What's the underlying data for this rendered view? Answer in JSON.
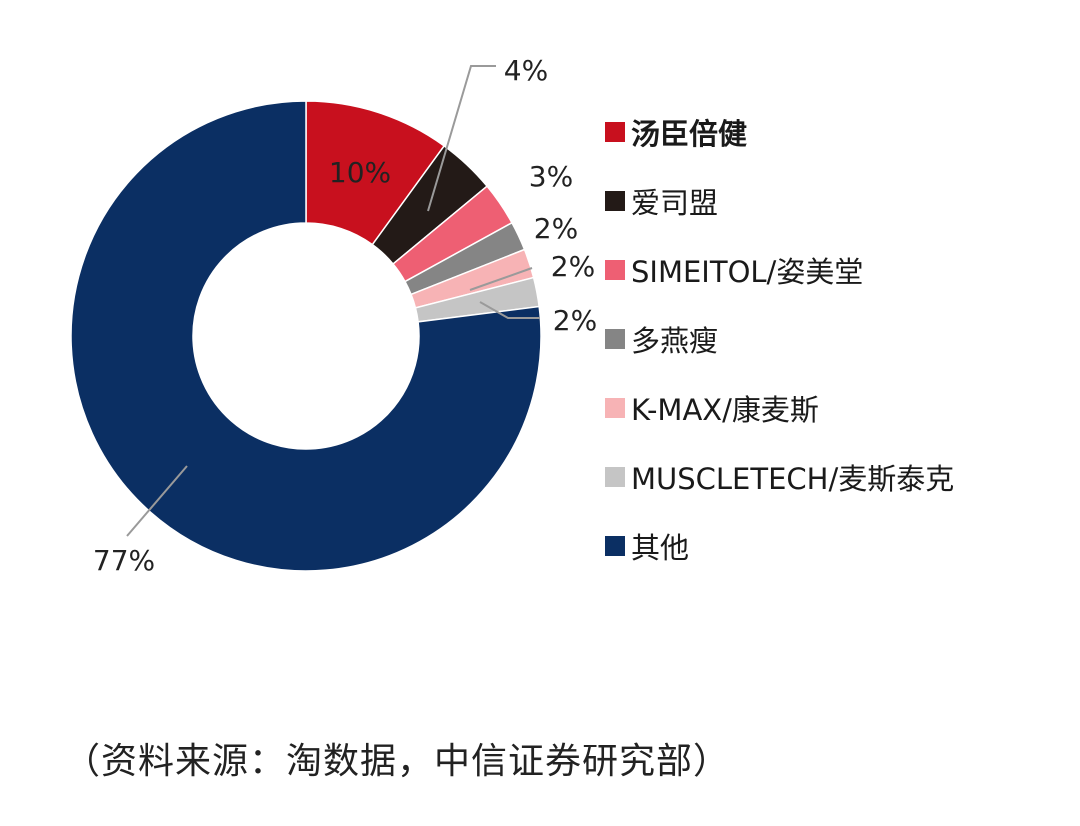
{
  "chart_data": {
    "type": "pie",
    "donut": true,
    "categories": [
      "汤臣倍健",
      "爱司盟",
      "SIMEITOL/姿美堂",
      "多燕瘦",
      "K-MAX/康麦斯",
      "MUSCLETECH/麦斯泰克",
      "其他"
    ],
    "values": [
      10,
      4,
      3,
      2,
      2,
      2,
      77
    ],
    "data_labels": [
      "10%",
      "4%",
      "3%",
      "2%",
      "2%",
      "2%",
      "77%"
    ],
    "colors": [
      "#c8101e",
      "#231a17",
      "#ee5f73",
      "#858585",
      "#f7b3b5",
      "#c5c5c5",
      "#0b2f63"
    ],
    "legend_placement": "right",
    "title": "",
    "source": "（资料来源：淘数据，中信证券研究部）"
  }
}
